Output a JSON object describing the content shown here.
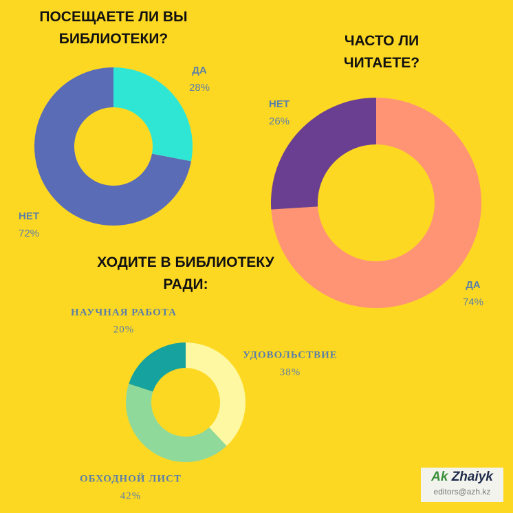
{
  "chart_data": [
    {
      "type": "pie",
      "title": "ПОСЕЩАЕТЕ ЛИ ВЫ БИБЛИОТЕКИ?",
      "categories": [
        "ДА",
        "НЕТ"
      ],
      "values": [
        28,
        72
      ],
      "value_labels": [
        "28%",
        "72%"
      ],
      "colors": [
        "#2fe6d4",
        "#5b6cb6"
      ]
    },
    {
      "type": "pie",
      "title": "ЧАСТО ЛИ ЧИТАЕТЕ?",
      "categories": [
        "ДА",
        "НЕТ"
      ],
      "values": [
        74,
        26
      ],
      "value_labels": [
        "74%",
        "26%"
      ],
      "colors": [
        "#ff9474",
        "#6a3f91"
      ]
    },
    {
      "type": "pie",
      "title": "ХОДИТЕ В БИБЛИОТЕКУ РАДИ:",
      "categories": [
        "УДОВОЛЬСТВИЕ",
        "ОБХОДНОЙ ЛИСТ",
        "НАУЧНАЯ РАБОТА"
      ],
      "values": [
        38,
        42,
        20
      ],
      "value_labels": [
        "38%",
        "42%",
        "20%"
      ],
      "colors": [
        "#fff8a2",
        "#8fd99b",
        "#16a39f"
      ]
    }
  ],
  "logo": {
    "brand": "Ak",
    "name": "Zhaiyk",
    "email": "editors@azh.kz"
  }
}
